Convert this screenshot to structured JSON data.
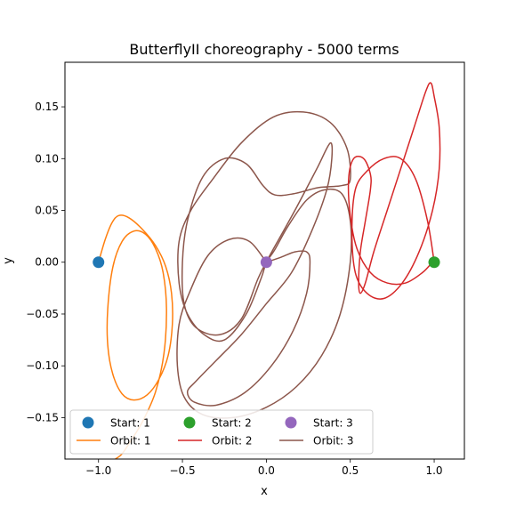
{
  "chart_data": {
    "type": "line",
    "title": "ButterflyII choreography - 5000 terms",
    "xlabel": "x",
    "ylabel": "y",
    "xlim": [
      -1.2,
      1.18
    ],
    "ylim": [
      -0.19,
      0.193
    ],
    "xticks": [
      {
        "value": -1.0,
        "label": "−1.0"
      },
      {
        "value": -0.5,
        "label": "−0.5"
      },
      {
        "value": 0.0,
        "label": "0.0"
      },
      {
        "value": 0.5,
        "label": "0.5"
      },
      {
        "value": 1.0,
        "label": "1.0"
      }
    ],
    "yticks": [
      {
        "value": 0.15,
        "label": "0.15"
      },
      {
        "value": 0.1,
        "label": "0.10"
      },
      {
        "value": 0.05,
        "label": "0.05"
      },
      {
        "value": 0.0,
        "label": "0.00"
      },
      {
        "value": -0.05,
        "label": "−0.05"
      },
      {
        "value": -0.1,
        "label": "−0.10"
      },
      {
        "value": -0.15,
        "label": "−0.15"
      }
    ],
    "grid": false,
    "legend": {
      "placement": "lower-left",
      "columns": 3,
      "entries": [
        {
          "label": "Start: 1",
          "kind": "marker",
          "color": "#1f77b4"
        },
        {
          "label": "Orbit: 1",
          "kind": "line",
          "color": "#ff7f0e"
        },
        {
          "label": "Start: 2",
          "kind": "marker",
          "color": "#2ca02c"
        },
        {
          "label": "Orbit: 2",
          "kind": "line",
          "color": "#d62728"
        },
        {
          "label": "Start: 3",
          "kind": "marker",
          "color": "#9467bd"
        },
        {
          "label": "Orbit: 3",
          "kind": "line",
          "color": "#8c564b"
        }
      ]
    },
    "start_points": [
      {
        "name": "Start: 1",
        "x": -1.0,
        "y": 0.0,
        "color": "#1f77b4"
      },
      {
        "name": "Start: 2",
        "x": 1.0,
        "y": 0.0,
        "color": "#2ca02c"
      },
      {
        "name": "Start: 3",
        "x": 0.0,
        "y": 0.0,
        "color": "#9467bd"
      }
    ],
    "orbits": [
      {
        "name": "Orbit: 1",
        "color": "#ff7f0e",
        "points": [
          [
            -1.0,
            0.0
          ],
          [
            -0.96,
            0.022
          ],
          [
            -0.92,
            0.038
          ],
          [
            -0.88,
            0.045
          ],
          [
            -0.82,
            0.043
          ],
          [
            -0.74,
            0.032
          ],
          [
            -0.66,
            0.016
          ],
          [
            -0.6,
            -0.004
          ],
          [
            -0.565,
            -0.03
          ],
          [
            -0.56,
            -0.06
          ],
          [
            -0.585,
            -0.09
          ],
          [
            -0.64,
            -0.113
          ],
          [
            -0.71,
            -0.128
          ],
          [
            -0.79,
            -0.133
          ],
          [
            -0.86,
            -0.127
          ],
          [
            -0.915,
            -0.108
          ],
          [
            -0.945,
            -0.08
          ],
          [
            -0.945,
            -0.045
          ],
          [
            -0.915,
            -0.005
          ],
          [
            -0.86,
            0.02
          ],
          [
            -0.79,
            0.03
          ],
          [
            -0.72,
            0.027
          ],
          [
            -0.66,
            0.013
          ],
          [
            -0.615,
            -0.01
          ],
          [
            -0.595,
            -0.045
          ],
          [
            -0.61,
            -0.088
          ],
          [
            -0.66,
            -0.125
          ],
          [
            -0.735,
            -0.153
          ],
          [
            -0.81,
            -0.173
          ],
          [
            -0.86,
            -0.185
          ],
          [
            -0.9,
            -0.19
          ]
        ]
      },
      {
        "name": "Orbit: 3",
        "color": "#8c564b",
        "points": [
          [
            0.0,
            0.0
          ],
          [
            -0.1,
            0.02
          ],
          [
            -0.22,
            0.022
          ],
          [
            -0.35,
            0.006
          ],
          [
            -0.46,
            -0.03
          ],
          [
            -0.52,
            -0.06
          ],
          [
            -0.53,
            -0.1
          ],
          [
            -0.49,
            -0.13
          ],
          [
            -0.38,
            -0.147
          ],
          [
            -0.2,
            -0.15
          ],
          [
            0.0,
            -0.14
          ],
          [
            0.18,
            -0.12
          ],
          [
            0.33,
            -0.09
          ],
          [
            0.44,
            -0.05
          ],
          [
            0.5,
            0.0
          ],
          [
            0.5,
            0.04
          ],
          [
            0.45,
            0.066
          ],
          [
            0.35,
            0.07
          ],
          [
            0.24,
            0.06
          ],
          [
            0.13,
            0.035
          ],
          [
            0.05,
            0.012
          ],
          [
            0.0,
            0.0
          ],
          [
            -0.05,
            -0.016
          ],
          [
            -0.15,
            -0.055
          ],
          [
            -0.28,
            -0.07
          ],
          [
            -0.42,
            -0.063
          ],
          [
            -0.49,
            -0.04
          ],
          [
            -0.5,
            0.0
          ],
          [
            -0.47,
            0.04
          ],
          [
            -0.38,
            0.082
          ],
          [
            -0.25,
            0.1
          ],
          [
            -0.12,
            0.095
          ],
          [
            -0.02,
            0.074
          ],
          [
            0.05,
            0.065
          ],
          [
            0.16,
            0.066
          ],
          [
            0.31,
            0.072
          ],
          [
            0.45,
            0.074
          ],
          [
            0.5,
            0.08
          ],
          [
            0.48,
            0.11
          ],
          [
            0.38,
            0.135
          ],
          [
            0.22,
            0.145
          ],
          [
            0.04,
            0.14
          ],
          [
            -0.15,
            0.115
          ],
          [
            -0.32,
            0.08
          ],
          [
            -0.45,
            0.05
          ],
          [
            -0.52,
            0.02
          ],
          [
            -0.52,
            -0.02
          ],
          [
            -0.47,
            -0.05
          ],
          [
            -0.37,
            -0.07
          ],
          [
            -0.25,
            -0.075
          ],
          [
            -0.12,
            -0.05
          ],
          [
            -0.03,
            -0.015
          ],
          [
            0.0,
            0.0
          ],
          [
            0.06,
            0.018
          ],
          [
            0.17,
            0.05
          ],
          [
            0.3,
            0.09
          ],
          [
            0.38,
            0.115
          ],
          [
            0.39,
            0.1
          ],
          [
            0.36,
            0.07
          ],
          [
            0.27,
            0.03
          ],
          [
            0.15,
            -0.01
          ],
          [
            0.0,
            -0.04
          ],
          [
            -0.15,
            -0.07
          ],
          [
            -0.3,
            -0.095
          ],
          [
            -0.42,
            -0.115
          ],
          [
            -0.47,
            -0.125
          ],
          [
            -0.43,
            -0.135
          ],
          [
            -0.3,
            -0.138
          ],
          [
            -0.13,
            -0.126
          ],
          [
            0.03,
            -0.1
          ],
          [
            0.16,
            -0.066
          ],
          [
            0.24,
            -0.03
          ],
          [
            0.26,
            0.0
          ],
          [
            0.24,
            0.01
          ],
          [
            0.17,
            0.01
          ],
          [
            0.09,
            0.005
          ],
          [
            0.0,
            0.0
          ]
        ]
      },
      {
        "name": "Orbit: 2",
        "color": "#d62728",
        "points": [
          [
            1.0,
            0.0
          ],
          [
            0.96,
            0.04
          ],
          [
            0.89,
            0.08
          ],
          [
            0.8,
            0.1
          ],
          [
            0.7,
            0.1
          ],
          [
            0.6,
            0.088
          ],
          [
            0.53,
            0.07
          ],
          [
            0.51,
            0.03
          ],
          [
            0.53,
            -0.01
          ],
          [
            0.6,
            -0.03
          ],
          [
            0.7,
            -0.035
          ],
          [
            0.81,
            -0.02
          ],
          [
            0.91,
            0.01
          ],
          [
            0.99,
            0.05
          ],
          [
            1.03,
            0.09
          ],
          [
            1.03,
            0.13
          ],
          [
            1.0,
            0.16
          ],
          [
            0.98,
            0.173
          ],
          [
            0.95,
            0.165
          ],
          [
            0.88,
            0.13
          ],
          [
            0.8,
            0.09
          ],
          [
            0.72,
            0.05
          ],
          [
            0.64,
            0.01
          ],
          [
            0.59,
            -0.02
          ],
          [
            0.56,
            -0.03
          ],
          [
            0.55,
            -0.02
          ],
          [
            0.56,
            0.01
          ],
          [
            0.59,
            0.04
          ],
          [
            0.62,
            0.07
          ],
          [
            0.62,
            0.085
          ],
          [
            0.58,
            0.1
          ],
          [
            0.52,
            0.1
          ],
          [
            0.49,
            0.08
          ],
          [
            0.5,
            0.045
          ],
          [
            0.54,
            0.013
          ],
          [
            0.62,
            -0.01
          ],
          [
            0.72,
            -0.02
          ],
          [
            0.83,
            -0.02
          ],
          [
            0.93,
            -0.01
          ],
          [
            0.99,
            0.0
          ],
          [
            1.0,
            0.0
          ]
        ]
      }
    ]
  }
}
